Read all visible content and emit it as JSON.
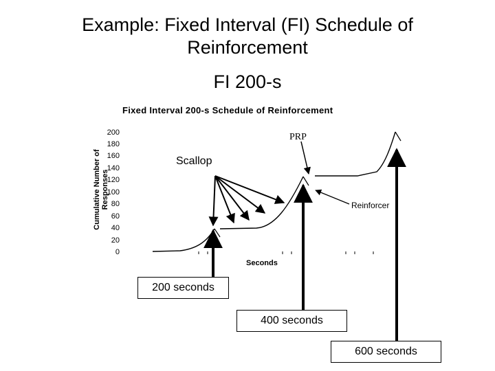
{
  "slide": {
    "title_line1": "Example:  Fixed Interval (FI) Schedule of",
    "title_line2": "Reinforcement",
    "subtitle": "FI 200-s"
  },
  "chart": {
    "title": "Fixed Interval 200-s Schedule of Reinforcement",
    "ylabel": "Cumulative Number of Responses",
    "xlabel": "Seconds",
    "yticks": [
      "200",
      "180",
      "160",
      "140",
      "120",
      "100",
      "80",
      "60",
      "40",
      "20",
      "0"
    ]
  },
  "annotations": {
    "scallop": "Scallop",
    "prp": "PRP",
    "reinforcer": "Reinforcer"
  },
  "boxes": {
    "sec200": "200 seconds",
    "sec400": "400 seconds",
    "sec600": "600 seconds"
  }
}
